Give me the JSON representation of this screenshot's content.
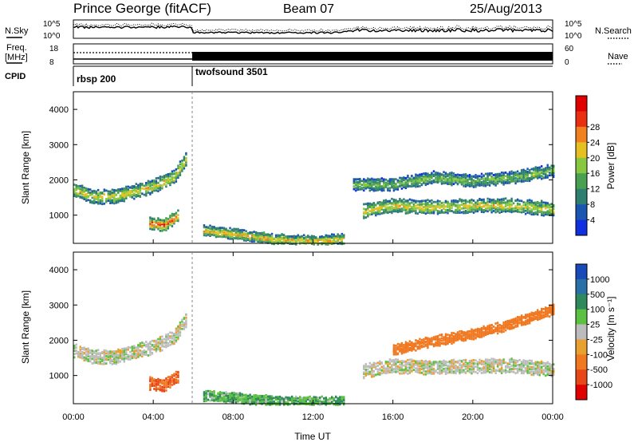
{
  "header": {
    "station": "Prince George (fitACF)",
    "beam": "Beam 07",
    "date": "25/Aug/2013"
  },
  "side_labels": {
    "nsky": "N.Sky",
    "nsearch": "N.Search",
    "freq_line1": "Freq.",
    "freq_line2": "[MHz]",
    "nave": "Nave",
    "cpid": "CPID"
  },
  "noise_panel": {
    "left_top": "10^5",
    "left_bottom": "10^0",
    "right_top": "10^5",
    "right_bottom": "10^0"
  },
  "freq_panel": {
    "left_top": "18",
    "left_bottom": "8",
    "right_top": "60",
    "right_bottom": "0"
  },
  "cpid": [
    {
      "label": "rbsp 200",
      "start_hour": 0,
      "end_hour": 6
    },
    {
      "label": "twofsound 3501",
      "start_hour": 6,
      "end_hour": 24
    }
  ],
  "colors": {
    "power_scale": [
      "#1030e0",
      "#1a55b0",
      "#2f7f70",
      "#48a050",
      "#88c840",
      "#e6c020",
      "#f08020",
      "#e83010",
      "#e00000"
    ],
    "velocity_scale": [
      "#1a4ab8",
      "#2a70a8",
      "#2e8a5a",
      "#5cc040",
      "#bcbcbc",
      "#e8a030",
      "#f07820",
      "#e84818",
      "#e00000"
    ]
  },
  "chart_data": [
    {
      "type": "heatmap",
      "panel": "power",
      "ylabel": "Slant Range [km]",
      "xlim": [
        0,
        24
      ],
      "ylim": [
        200,
        4500
      ],
      "yticks": [
        1000,
        2000,
        3000,
        4000
      ],
      "colorbar_label": "Power [dB]",
      "colorbar_ticks": [
        "4",
        "8",
        "12",
        "16",
        "20",
        "24",
        "28"
      ],
      "features": [
        {
          "name": "early-band",
          "t": [
            0,
            1,
            2,
            3,
            4,
            5,
            5.6
          ],
          "r": [
            1750,
            1550,
            1550,
            1700,
            1850,
            2100,
            2600
          ],
          "width_km": 350,
          "peak_db": 20
        },
        {
          "name": "dawn-patch",
          "t": [
            3.8,
            4.5,
            5.2
          ],
          "r": [
            800,
            750,
            1000
          ],
          "width_km": 300,
          "peak_db": 28
        },
        {
          "name": "morning-ground",
          "t": [
            6.5,
            8,
            10,
            12,
            13.5
          ],
          "r": [
            600,
            500,
            350,
            300,
            350
          ],
          "width_km": 250,
          "peak_db": 22
        },
        {
          "name": "afternoon-band-low",
          "t": [
            14.5,
            16,
            18,
            20,
            22,
            24
          ],
          "r": [
            1150,
            1300,
            1250,
            1300,
            1300,
            1200
          ],
          "width_km": 350,
          "peak_db": 20
        },
        {
          "name": "afternoon-band-high",
          "t": [
            14,
            16,
            18,
            20,
            22,
            24
          ],
          "r": [
            1900,
            1900,
            2100,
            2000,
            2100,
            2300
          ],
          "width_km": 300,
          "peak_db": 16
        }
      ]
    },
    {
      "type": "heatmap",
      "panel": "velocity",
      "ylabel": "Slant Range [km]",
      "xlim": [
        0,
        24
      ],
      "ylim": [
        200,
        4500
      ],
      "yticks": [
        1000,
        2000,
        3000,
        4000
      ],
      "xlabel": "Time UT",
      "xticks": [
        "00:00",
        "04:00",
        "08:00",
        "12:00",
        "16:00",
        "20:00",
        "00:00"
      ],
      "colorbar_label": "Velocity [m s⁻¹]",
      "colorbar_ticks": [
        "1000",
        "500",
        "100",
        "25",
        "-25",
        "-100",
        "-500",
        "-1000"
      ],
      "features": [
        {
          "name": "early-band",
          "t": [
            0,
            1,
            2,
            3,
            4,
            5,
            5.6
          ],
          "r": [
            1750,
            1550,
            1550,
            1700,
            1850,
            2100,
            2600
          ],
          "width_km": 350,
          "velocity": 0
        },
        {
          "name": "dawn-patch",
          "t": [
            3.8,
            4.5,
            5.2
          ],
          "r": [
            800,
            750,
            1000
          ],
          "width_km": 300,
          "velocity": -300
        },
        {
          "name": "morning-ground",
          "t": [
            6.5,
            8,
            10,
            12,
            13.5
          ],
          "r": [
            450,
            400,
            300,
            280,
            300
          ],
          "width_km": 250,
          "velocity": 60
        },
        {
          "name": "afternoon-band-low",
          "t": [
            14.5,
            16,
            18,
            20,
            22,
            24
          ],
          "r": [
            1150,
            1300,
            1250,
            1300,
            1300,
            1200
          ],
          "width_km": 350,
          "velocity": 0
        },
        {
          "name": "afternoon-band-high",
          "t": [
            16,
            18,
            20,
            22,
            24
          ],
          "r": [
            1750,
            2000,
            2200,
            2500,
            2900
          ],
          "width_km": 250,
          "velocity": -150
        }
      ]
    }
  ]
}
